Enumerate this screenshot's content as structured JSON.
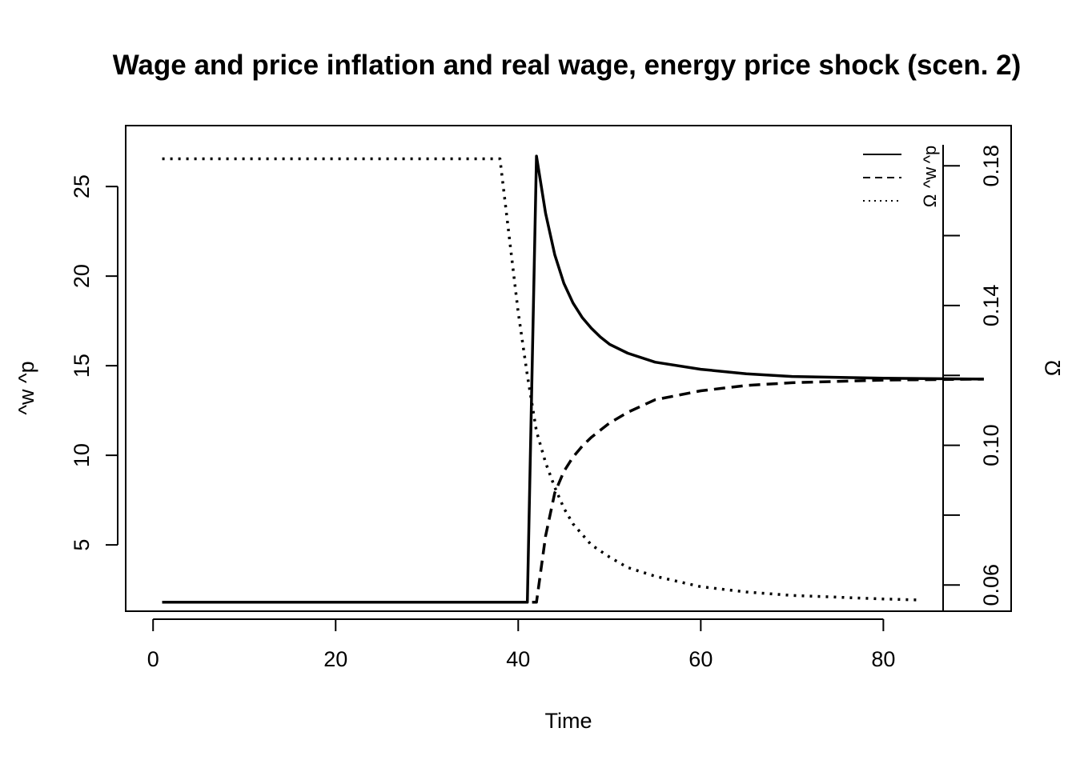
{
  "chart_data": {
    "type": "line",
    "title": "Wage and price inflation and real wage, energy price shock (scen. 2)",
    "xlabel": "Time",
    "ylabel_left": "^w  ^p",
    "ylabel_right": "Ω",
    "xlim": [
      -3,
      94
    ],
    "ylim_left": [
      1.3,
      28.4
    ],
    "ylim_right": [
      0.0525,
      0.1915
    ],
    "x_ticks": [
      0,
      20,
      40,
      60,
      80
    ],
    "y_ticks_left": [
      5,
      10,
      15,
      20,
      25
    ],
    "y_ticks_right_labeled": [
      0.06,
      0.1,
      0.14,
      0.18
    ],
    "y_ticks_right_minor": [
      0.08,
      0.12,
      0.16
    ],
    "grid": false,
    "legend_position": "top-right",
    "series": [
      {
        "name": "^p",
        "axis": "left",
        "style": "solid",
        "x": [
          1,
          41,
          42,
          43,
          44,
          45,
          46,
          47,
          48,
          49,
          50,
          52,
          55,
          60,
          65,
          70,
          80,
          91
        ],
        "y": [
          1.8,
          1.8,
          26.7,
          23.5,
          21.2,
          19.6,
          18.5,
          17.7,
          17.1,
          16.6,
          16.2,
          15.7,
          15.2,
          14.8,
          14.55,
          14.4,
          14.3,
          14.25
        ]
      },
      {
        "name": "^w",
        "axis": "left",
        "style": "dashed",
        "x": [
          1,
          42,
          43,
          44,
          45,
          46,
          47,
          48,
          50,
          52,
          55,
          60,
          65,
          70,
          80,
          91
        ],
        "y": [
          1.8,
          1.8,
          5.5,
          7.9,
          9.1,
          9.9,
          10.5,
          11.0,
          11.8,
          12.4,
          13.1,
          13.6,
          13.9,
          14.05,
          14.2,
          14.25
        ]
      },
      {
        "name": "Ω",
        "axis": "right",
        "style": "dotted",
        "x": [
          1,
          38,
          39,
          40,
          41,
          42,
          43,
          44,
          45,
          46,
          48,
          50,
          52,
          55,
          60,
          65,
          70,
          75,
          80,
          84
        ],
        "y": [
          0.182,
          0.182,
          0.16,
          0.138,
          0.12,
          0.104,
          0.095,
          0.088,
          0.082,
          0.0775,
          0.0715,
          0.068,
          0.065,
          0.0625,
          0.0595,
          0.058,
          0.057,
          0.0565,
          0.056,
          0.0557
        ]
      }
    ]
  }
}
